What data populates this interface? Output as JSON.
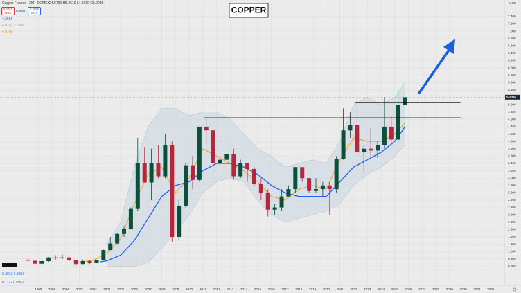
{
  "header": {
    "symbol": "Copper Futures · 3M · COMEX",
    "ohlc": "O4.8790 H5.2610 L4.8160 C5.2035",
    "sell_price": "5.2045",
    "sell": "SELL",
    "spread": "0.0050",
    "buy_price": "5.2095",
    "buy": "BUY",
    "indicators": [
      {
        "text": "4.2566",
        "color": "#2962ff"
      },
      {
        "text": "4.9797 3.5386",
        "color": "#9a9a9a"
      },
      {
        "text": "4.0188",
        "color": "#f7931a"
      }
    ],
    "osc": [
      "0.3813 0.3003",
      "0.1122 0.0952"
    ],
    "currency": "USD"
  },
  "chart_data": {
    "type": "candlestick",
    "title": "COPPER",
    "x": [
      1998.25,
      1998.75,
      1999.25,
      1999.75,
      2000.25,
      2000.75,
      2001.25,
      2001.75,
      2002.25,
      2002.75,
      2003.25,
      2003.75,
      2004.25,
      2004.75,
      2005.25,
      2005.75,
      2006.25,
      2006.75,
      2007.25,
      2007.75,
      2008.25,
      2008.75,
      2009.25,
      2009.75,
      2010.25,
      2010.75,
      2011.25,
      2011.75,
      2012.25,
      2012.75,
      2013.25,
      2013.75,
      2014.25,
      2014.75,
      2015.25,
      2015.75,
      2016.25,
      2016.75,
      2017.25,
      2017.75,
      2018.25,
      2018.75,
      2019.25,
      2019.75,
      2020.25,
      2020.75,
      2021.25,
      2021.75,
      2022.25,
      2022.75,
      2023.25,
      2023.75,
      2024.25,
      2024.75,
      2025.25,
      2025.75
    ],
    "open": [
      0.78,
      0.75,
      0.67,
      0.74,
      0.84,
      0.82,
      0.84,
      0.76,
      0.66,
      0.74,
      0.7,
      0.76,
      1.04,
      1.22,
      1.48,
      1.62,
      2.16,
      3.4,
      2.88,
      3.4,
      3.05,
      3.9,
      1.4,
      2.25,
      3.35,
      2.95,
      4.4,
      4.3,
      3.4,
      3.5,
      3.65,
      3.05,
      3.4,
      3.25,
      2.85,
      2.6,
      2.14,
      2.2,
      2.5,
      2.7,
      3.3,
      3.0,
      2.65,
      2.7,
      2.8,
      2.7,
      3.52,
      4.3,
      4.45,
      3.7,
      3.8,
      3.75,
      3.9,
      4.4,
      4.05,
      5.0
    ],
    "high": [
      0.82,
      0.78,
      0.75,
      0.85,
      0.9,
      0.92,
      0.86,
      0.78,
      0.78,
      0.76,
      0.78,
      1.05,
      1.4,
      1.5,
      1.7,
      2.2,
      4.1,
      3.85,
      3.8,
      3.9,
      4.2,
      4.0,
      2.4,
      3.4,
      3.6,
      4.4,
      4.65,
      4.6,
      4.0,
      3.9,
      3.8,
      3.5,
      3.4,
      3.3,
      3.0,
      2.7,
      2.3,
      2.7,
      2.8,
      3.3,
      3.3,
      3.0,
      3.0,
      2.9,
      2.9,
      3.6,
      4.9,
      4.8,
      5.2,
      3.9,
      4.35,
      4.0,
      5.2,
      4.7,
      5.4,
      5.95
    ],
    "low": [
      0.72,
      0.65,
      0.62,
      0.72,
      0.76,
      0.8,
      0.74,
      0.6,
      0.66,
      0.66,
      0.7,
      0.76,
      1.04,
      1.2,
      1.4,
      1.6,
      2.1,
      2.9,
      2.4,
      3.0,
      3.0,
      1.26,
      1.3,
      2.2,
      2.7,
      2.9,
      3.9,
      2.9,
      3.2,
      3.3,
      2.95,
      3.0,
      2.9,
      2.8,
      2.4,
      1.95,
      2.0,
      2.1,
      2.5,
      2.6,
      2.9,
      2.6,
      2.6,
      2.5,
      2.0,
      2.6,
      3.5,
      4.1,
      3.6,
      3.15,
      3.6,
      3.55,
      3.8,
      3.95,
      4.0,
      4.4
    ],
    "close": [
      0.75,
      0.67,
      0.74,
      0.84,
      0.82,
      0.84,
      0.76,
      0.66,
      0.74,
      0.7,
      0.76,
      1.04,
      1.22,
      1.48,
      1.62,
      2.16,
      3.4,
      2.88,
      3.4,
      3.05,
      3.9,
      1.4,
      2.25,
      3.35,
      2.95,
      4.4,
      4.3,
      3.4,
      3.5,
      3.65,
      3.05,
      3.4,
      3.25,
      2.85,
      2.6,
      2.14,
      2.2,
      2.5,
      2.7,
      3.3,
      3.0,
      2.65,
      2.7,
      2.8,
      2.7,
      3.52,
      4.3,
      4.45,
      3.7,
      3.8,
      3.75,
      3.9,
      4.4,
      4.05,
      5.0,
      5.2035
    ],
    "up_color": "#0b4f3c",
    "down_color": "#b3283e",
    "band": {
      "color": "#c9d6e0",
      "x": [
        2004,
        2005,
        2006,
        2007,
        2008,
        2009,
        2010,
        2011,
        2012,
        2013,
        2014,
        2015,
        2016,
        2017,
        2018,
        2019,
        2020,
        2021,
        2022,
        2023,
        2024,
        2025,
        2025.75
      ],
      "upper": [
        1.2,
        1.8,
        3.3,
        4.4,
        4.9,
        4.9,
        4.7,
        4.8,
        4.8,
        4.6,
        4.2,
        3.8,
        3.6,
        3.3,
        3.4,
        3.5,
        3.4,
        4.0,
        5.0,
        5.2,
        5.0,
        5.2,
        5.6
      ],
      "lower": [
        0.6,
        0.6,
        0.6,
        0.7,
        1.1,
        1.5,
        2.0,
        2.6,
        2.9,
        3.0,
        2.9,
        2.4,
        2.0,
        1.8,
        1.9,
        2.0,
        2.1,
        2.3,
        2.8,
        3.1,
        3.3,
        3.6,
        3.9
      ]
    },
    "lines": [
      {
        "color": "#f39c1f",
        "x": [
          2002,
          2003,
          2004,
          2005,
          2006,
          2007,
          2008,
          2009,
          2010,
          2011,
          2012,
          2013,
          2014,
          2015,
          2016,
          2017,
          2018,
          2019,
          2020,
          2021,
          2022,
          2023,
          2024,
          2025,
          2025.75
        ],
        "values": [
          0.72,
          0.76,
          0.95,
          1.35,
          2.3,
          3.1,
          3.3,
          2.6,
          3.0,
          3.8,
          3.6,
          3.4,
          3.2,
          2.9,
          2.5,
          2.4,
          2.7,
          2.8,
          2.7,
          3.5,
          4.1,
          4.0,
          4.0,
          4.2,
          4.5
        ]
      },
      {
        "color": "#2962ff",
        "x": [
          2003.5,
          2004,
          2005,
          2006,
          2007,
          2008,
          2009,
          2010,
          2011,
          2012,
          2013,
          2014,
          2015,
          2016,
          2017,
          2018,
          2019,
          2020,
          2021,
          2022,
          2023,
          2024,
          2025,
          2025.75
        ],
        "values": [
          0.72,
          0.75,
          0.9,
          1.3,
          1.9,
          2.5,
          2.8,
          2.9,
          3.2,
          3.4,
          3.4,
          3.3,
          3.1,
          2.8,
          2.6,
          2.5,
          2.5,
          2.5,
          2.9,
          3.3,
          3.5,
          3.7,
          4.0,
          4.4
        ]
      }
    ],
    "levels": [
      {
        "value": 4.64,
        "x": [
          2011.1,
          2029.8
        ]
      },
      {
        "value": 5.06,
        "x": [
          2022.1,
          2029.8
        ]
      }
    ],
    "last_price": {
      "value": 5.2035,
      "label": "5.2035"
    },
    "xlim": [
      1996.2,
      2033
    ],
    "ylim": [
      0.08,
      7.85
    ],
    "xticks": [
      1999,
      2000,
      2001,
      2002,
      2003,
      2004,
      2005,
      2006,
      2007,
      2008,
      2009,
      2010,
      2011,
      2012,
      2013,
      2014,
      2015,
      2016,
      2017,
      2018,
      2019,
      2020,
      2021,
      2022,
      2023,
      2024,
      2025,
      2026,
      2027,
      2028,
      2029,
      2030,
      2031,
      2032
    ],
    "yticks": [
      {
        "value": 0.6,
        "label": "0.600"
      },
      {
        "value": 0.8,
        "label": "0.800"
      },
      {
        "value": 1.0,
        "label": "1.000"
      },
      {
        "value": 1.2,
        "label": "1.200"
      },
      {
        "value": 1.4,
        "label": "1.400"
      },
      {
        "value": 1.6,
        "label": "1.600"
      },
      {
        "value": 1.8,
        "label": "1.800"
      },
      {
        "value": 2.0,
        "label": "2.000"
      },
      {
        "value": 2.2,
        "label": "2.200"
      },
      {
        "value": 2.4,
        "label": "2.400"
      },
      {
        "value": 2.6,
        "label": "2.600"
      },
      {
        "value": 2.8,
        "label": "2.800"
      },
      {
        "value": 3.0,
        "label": "3.000"
      },
      {
        "value": 3.2,
        "label": "3.200"
      },
      {
        "value": 3.4,
        "label": "3.400"
      },
      {
        "value": 3.6,
        "label": "3.600"
      },
      {
        "value": 3.8,
        "label": "3.800"
      },
      {
        "value": 4.0,
        "label": "4.000"
      },
      {
        "value": 4.2,
        "label": "4.200"
      },
      {
        "value": 4.4,
        "label": "4.400"
      },
      {
        "value": 4.6,
        "label": "4.600"
      },
      {
        "value": 4.8,
        "label": "4.800"
      },
      {
        "value": 5.0,
        "label": "5.000"
      },
      {
        "value": 5.4,
        "label": "5.400"
      },
      {
        "value": 5.6,
        "label": "5.600"
      },
      {
        "value": 5.8,
        "label": "5.800"
      },
      {
        "value": 6.0,
        "label": "6.000"
      },
      {
        "value": 6.2,
        "label": "6.200"
      },
      {
        "value": 6.4,
        "label": "6.400"
      },
      {
        "value": 6.6,
        "label": "6.600"
      },
      {
        "value": 6.8,
        "label": "6.800"
      },
      {
        "value": 7.0,
        "label": "7.000"
      },
      {
        "value": 7.2,
        "label": "7.200"
      },
      {
        "value": 7.4,
        "label": "7.400"
      }
    ],
    "grid": true
  }
}
